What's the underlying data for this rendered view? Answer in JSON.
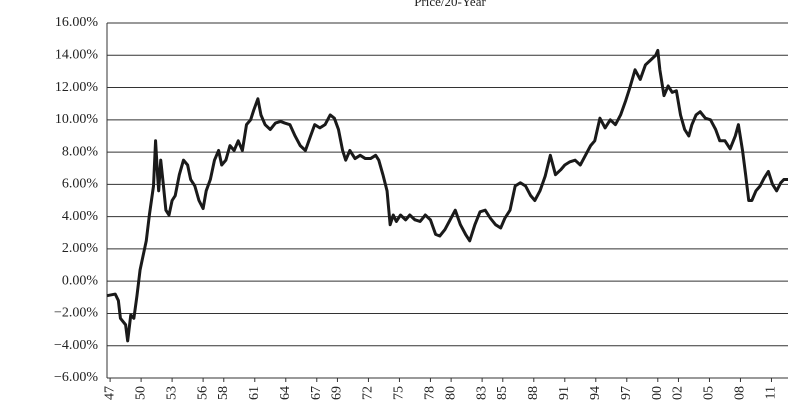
{
  "chart_data": {
    "type": "line",
    "title": "Price/20-Year",
    "x": [
      1946.7,
      1947.5,
      1947.8,
      1948.0,
      1948.5,
      1948.7,
      1949.0,
      1949.3,
      1949.6,
      1949.9,
      1950.2,
      1950.5,
      1950.8,
      1951.0,
      1951.2,
      1951.4,
      1951.6,
      1951.7,
      1951.9,
      1952.1,
      1952.4,
      1952.7,
      1953.0,
      1953.3,
      1953.7,
      1954.1,
      1954.5,
      1954.8,
      1955.2,
      1955.6,
      1956.0,
      1956.3,
      1956.7,
      1957.1,
      1957.5,
      1957.8,
      1958.2,
      1958.6,
      1959.0,
      1959.4,
      1959.8,
      1960.2,
      1960.6,
      1960.9,
      1961.3,
      1961.6,
      1962.0,
      1962.5,
      1963.0,
      1963.5,
      1963.9,
      1964.4,
      1964.9,
      1965.4,
      1965.9,
      1966.4,
      1966.8,
      1967.3,
      1967.8,
      1968.3,
      1968.7,
      1969.1,
      1969.5,
      1969.8,
      1970.2,
      1970.7,
      1971.2,
      1971.7,
      1972.2,
      1972.7,
      1973.0,
      1973.4,
      1973.8,
      1974.1,
      1974.4,
      1974.7,
      1975.1,
      1975.6,
      1976.0,
      1976.5,
      1977.0,
      1977.5,
      1978.0,
      1978.5,
      1978.9,
      1979.4,
      1979.9,
      1980.4,
      1980.9,
      1981.4,
      1981.8,
      1982.3,
      1982.8,
      1983.3,
      1983.8,
      1984.3,
      1984.8,
      1985.2,
      1985.7,
      1986.2,
      1986.7,
      1987.2,
      1987.7,
      1988.1,
      1988.6,
      1989.1,
      1989.6,
      1990.1,
      1990.6,
      1991.0,
      1991.5,
      1992.0,
      1992.5,
      1993.0,
      1993.5,
      1993.9,
      1994.4,
      1994.9,
      1995.4,
      1995.9,
      1996.4,
      1996.9,
      1997.3,
      1997.8,
      1998.3,
      1998.8,
      1999.3,
      1999.8,
      2000.0,
      2000.2,
      2000.6,
      2001.0,
      2001.4,
      2001.8,
      2002.2,
      2002.6,
      2003.0,
      2003.3,
      2003.7,
      2004.1,
      2004.6,
      2005.1,
      2005.6,
      2006.0,
      2006.5,
      2007.0,
      2007.5,
      2007.8,
      2008.2,
      2008.5,
      2008.8,
      2009.1,
      2009.5,
      2009.9,
      2010.3,
      2010.7,
      2011.1,
      2011.5,
      2011.9,
      2012.2,
      2012.6
    ],
    "series": [
      {
        "color": "#1a1a1a",
        "values": [
          -0.9,
          -0.8,
          -1.2,
          -2.3,
          -2.7,
          -3.7,
          -2.1,
          -2.3,
          -0.9,
          0.7,
          1.6,
          2.5,
          4.1,
          5.0,
          5.9,
          8.7,
          6.5,
          5.6,
          7.5,
          6.3,
          4.4,
          4.1,
          5.0,
          5.3,
          6.6,
          7.5,
          7.2,
          6.3,
          5.9,
          5.0,
          4.5,
          5.6,
          6.3,
          7.5,
          8.1,
          7.2,
          7.5,
          8.4,
          8.1,
          8.7,
          8.1,
          9.7,
          10.0,
          10.6,
          11.3,
          10.3,
          9.7,
          9.4,
          9.8,
          9.9,
          9.8,
          9.7,
          9.0,
          8.4,
          8.1,
          9.0,
          9.7,
          9.5,
          9.7,
          10.3,
          10.1,
          9.4,
          8.1,
          7.5,
          8.1,
          7.6,
          7.8,
          7.6,
          7.6,
          7.8,
          7.5,
          6.6,
          5.6,
          3.5,
          4.1,
          3.7,
          4.1,
          3.8,
          4.1,
          3.8,
          3.7,
          4.1,
          3.8,
          2.9,
          2.8,
          3.2,
          3.8,
          4.4,
          3.5,
          2.9,
          2.5,
          3.5,
          4.3,
          4.4,
          3.9,
          3.5,
          3.3,
          3.9,
          4.4,
          5.9,
          6.1,
          5.9,
          5.3,
          5.0,
          5.6,
          6.5,
          7.8,
          6.6,
          6.9,
          7.2,
          7.4,
          7.5,
          7.2,
          7.8,
          8.4,
          8.7,
          10.1,
          9.5,
          10.0,
          9.7,
          10.3,
          11.2,
          12.0,
          13.1,
          12.5,
          13.4,
          13.7,
          14.0,
          14.3,
          13.1,
          11.5,
          12.1,
          11.7,
          11.8,
          10.3,
          9.4,
          9.0,
          9.7,
          10.3,
          10.5,
          10.1,
          10.0,
          9.4,
          8.7,
          8.7,
          8.2,
          9.0,
          9.7,
          8.1,
          6.6,
          5.0,
          5.0,
          5.6,
          5.9,
          6.4,
          6.8,
          6.0,
          5.6,
          6.1,
          6.3,
          6.3
        ]
      }
    ],
    "xlim": [
      1946.7,
      2012.6
    ],
    "xticks": [
      {
        "value": 1947,
        "label": "47"
      },
      {
        "value": 1950,
        "label": "50"
      },
      {
        "value": 1953,
        "label": "53"
      },
      {
        "value": 1956,
        "label": "56"
      },
      {
        "value": 1958,
        "label": "58"
      },
      {
        "value": 1961,
        "label": "61"
      },
      {
        "value": 1964,
        "label": "64"
      },
      {
        "value": 1967,
        "label": "67"
      },
      {
        "value": 1969,
        "label": "69"
      },
      {
        "value": 1972,
        "label": "72"
      },
      {
        "value": 1975,
        "label": "75"
      },
      {
        "value": 1978,
        "label": "78"
      },
      {
        "value": 1980,
        "label": "80"
      },
      {
        "value": 1983,
        "label": "83"
      },
      {
        "value": 1985,
        "label": "85"
      },
      {
        "value": 1988,
        "label": "88"
      },
      {
        "value": 1991,
        "label": "91"
      },
      {
        "value": 1994,
        "label": "94"
      },
      {
        "value": 1997,
        "label": "97"
      },
      {
        "value": 2000,
        "label": "00"
      },
      {
        "value": 2002,
        "label": "02"
      },
      {
        "value": 2005,
        "label": "05"
      },
      {
        "value": 2008,
        "label": "08"
      },
      {
        "value": 2011,
        "label": "11"
      }
    ],
    "ylim": [
      -6,
      16
    ],
    "yticks": [
      {
        "value": -6,
        "label": "−6.00%"
      },
      {
        "value": -4,
        "label": "−4.00%"
      },
      {
        "value": -2,
        "label": "−2.00%"
      },
      {
        "value": 0,
        "label": "0.00%"
      },
      {
        "value": 2,
        "label": "2.00%"
      },
      {
        "value": 4,
        "label": "4.00%"
      },
      {
        "value": 6,
        "label": "6.00%"
      },
      {
        "value": 8,
        "label": "8.00%"
      },
      {
        "value": 10,
        "label": "10.00%"
      },
      {
        "value": 12,
        "label": "12.00%"
      },
      {
        "value": 14,
        "label": "14.00%"
      },
      {
        "value": 16,
        "label": "16.00%"
      }
    ],
    "grid": true
  }
}
